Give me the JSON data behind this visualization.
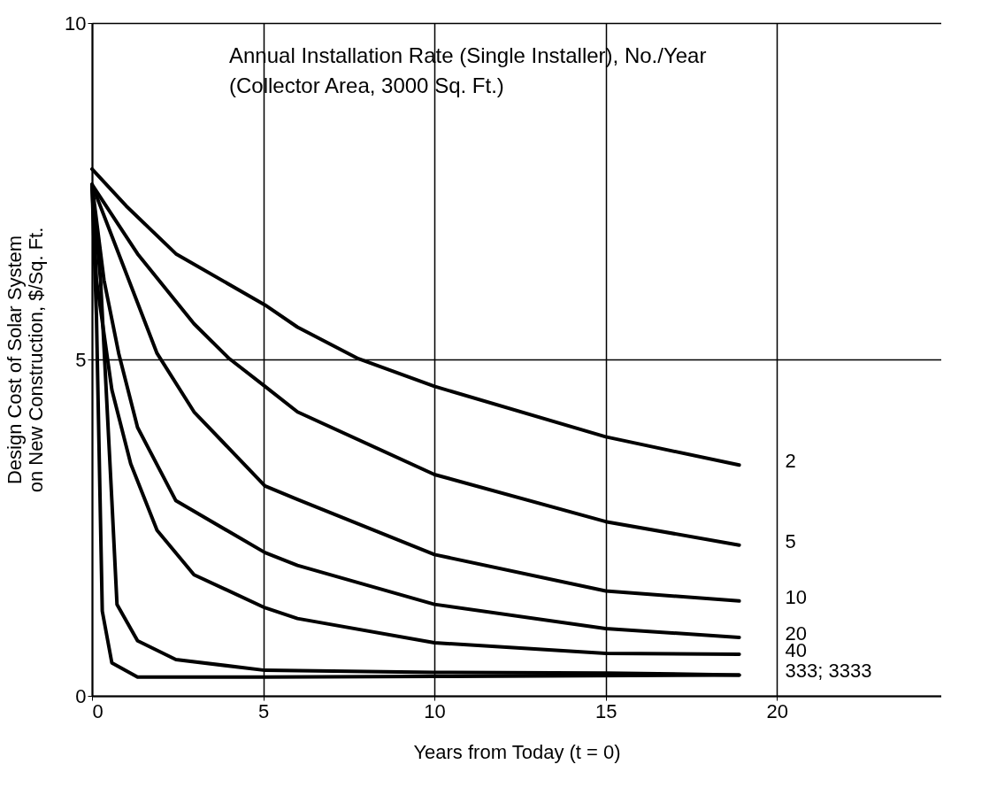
{
  "chart_data": {
    "type": "line",
    "xlabel": "Years from Today (t = 0)",
    "ylabel": "Design Cost of Solar System\non New Construction, $/Sq. Ft.",
    "annotations": [
      "Annual Installation Rate (Single Installer), No./Year",
      "(Collector Area, 3000 Sq. Ft.)"
    ],
    "xlim": [
      0,
      24.8
    ],
    "ylim": [
      0,
      10
    ],
    "xticks": [
      0,
      5,
      10,
      15,
      20
    ],
    "yticks": [
      0,
      5,
      10
    ],
    "grid": true,
    "legend": false,
    "marker": "none",
    "line_style": "solid",
    "series": [
      {
        "name": "2",
        "color": "#000000",
        "x": [
          0,
          1.0,
          2.45,
          5.05,
          6.0,
          7.78,
          10,
          15,
          18.9
        ],
        "values": [
          7.83,
          7.28,
          6.57,
          5.81,
          5.48,
          5.01,
          4.6,
          3.85,
          3.43
        ]
      },
      {
        "name": "5",
        "color": "#000000",
        "x": [
          0,
          1.33,
          2.98,
          3.99,
          5.05,
          6.0,
          10,
          15,
          18.9
        ],
        "values": [
          7.6,
          6.57,
          5.53,
          5.02,
          4.6,
          4.22,
          3.29,
          2.59,
          2.24
        ]
      },
      {
        "name": "10",
        "color": "#000000",
        "x": [
          0,
          0.78,
          1.9,
          2.98,
          5.05,
          6.0,
          10,
          15,
          18.9
        ],
        "values": [
          7.6,
          6.57,
          5.09,
          4.22,
          3.12,
          2.92,
          2.1,
          1.56,
          1.41
        ]
      },
      {
        "name": "20",
        "color": "#000000",
        "x": [
          0,
          0.35,
          0.78,
          1.33,
          2.45,
          5.05,
          6.0,
          10,
          15,
          18.9
        ],
        "values": [
          7.6,
          6.18,
          5.09,
          3.99,
          2.9,
          2.13,
          1.94,
          1.36,
          1.0,
          0.87
        ]
      },
      {
        "name": "40",
        "color": "#000000",
        "x": [
          0,
          0.13,
          0.58,
          1.13,
          1.9,
          2.98,
          5.05,
          6.0,
          10,
          15,
          18.9
        ],
        "values": [
          7.6,
          6.18,
          4.55,
          3.45,
          2.46,
          1.8,
          1.31,
          1.15,
          0.79,
          0.63,
          0.62
        ]
      },
      {
        "name": "333; 3333",
        "color": "#000000",
        "x": [
          0,
          0.25,
          0.58,
          0.73,
          1.33,
          2.45,
          5.05,
          10,
          15,
          18.9
        ],
        "values": [
          7.6,
          6.18,
          2.9,
          1.36,
          0.82,
          0.54,
          0.38,
          0.35,
          0.34,
          0.31
        ]
      },
      {
        "color": "#000000",
        "x": [
          0,
          0.13,
          0.3,
          0.58,
          1.33,
          5.05,
          10,
          18.9
        ],
        "values": [
          7.6,
          5.64,
          1.26,
          0.49,
          0.28,
          0.28,
          0.29,
          0.31
        ]
      }
    ]
  }
}
